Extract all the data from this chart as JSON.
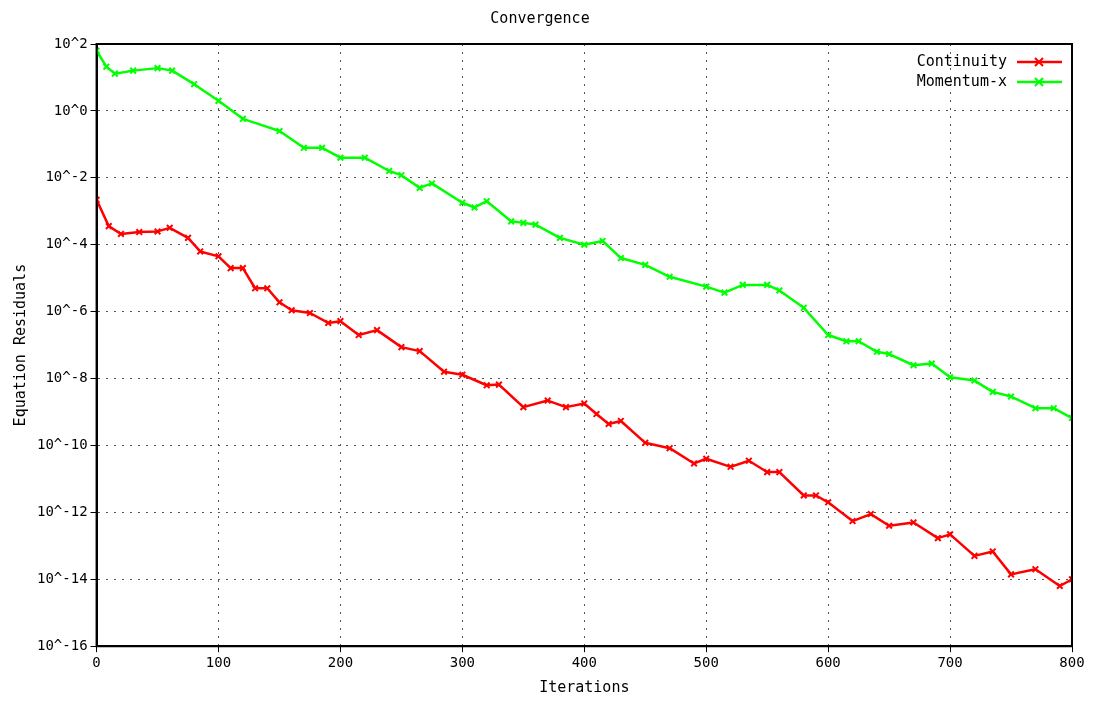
{
  "chart_data": {
    "type": "line",
    "title": "Convergence",
    "xlabel": "Iterations",
    "ylabel": "Equation Residuals",
    "log": "y",
    "grid": true,
    "legend": "top right",
    "marker": "cross",
    "line_style": "solid",
    "xlim": [
      0,
      800
    ],
    "xticks": [
      0,
      100,
      200,
      300,
      400,
      500,
      600,
      700,
      800
    ],
    "ylim": [
      1e-16,
      100
    ],
    "yticks": [
      {
        "value": 100,
        "label": "10^2"
      },
      {
        "value": 1,
        "label": "10^0"
      },
      {
        "value": 0.01,
        "label": "10^-2"
      },
      {
        "value": 0.0001,
        "label": "10^-4"
      },
      {
        "value": 1e-06,
        "label": "10^-6"
      },
      {
        "value": 1e-08,
        "label": "10^-8"
      },
      {
        "value": 1e-10,
        "label": "10^-10"
      },
      {
        "value": 1e-12,
        "label": "10^-12"
      },
      {
        "value": 1e-14,
        "label": "10^-14"
      },
      {
        "value": 1e-16,
        "label": "10^-16"
      }
    ],
    "series": [
      {
        "name": "Continuity",
        "color": "#ff0000",
        "x": [
          0,
          10,
          20,
          35,
          50,
          60,
          75,
          85,
          100,
          110,
          120,
          130,
          140,
          150,
          160,
          175,
          190,
          200,
          215,
          230,
          250,
          265,
          285,
          300,
          320,
          330,
          350,
          370,
          385,
          400,
          410,
          420,
          430,
          450,
          470,
          490,
          500,
          520,
          535,
          550,
          560,
          580,
          590,
          600,
          620,
          635,
          650,
          670,
          690,
          700,
          720,
          735,
          750,
          770,
          790,
          800
        ],
        "values": [
          0.0022,
          0.00036,
          0.00021,
          0.00024,
          0.00025,
          0.00032,
          0.00016,
          6.3e-05,
          4.5e-05,
          2e-05,
          2e-05,
          5e-06,
          5e-06,
          1.9e-06,
          1.1e-06,
          9.1e-07,
          4.6e-07,
          5.2e-07,
          2e-07,
          2.8e-07,
          8.7e-08,
          6.6e-08,
          1.6e-08,
          1.3e-08,
          6.3e-09,
          6.6e-09,
          1.4e-09,
          2.2e-09,
          1.4e-09,
          1.8e-09,
          8.7e-10,
          4.4e-10,
          5.4e-10,
          1.2e-10,
          8.3e-11,
          2.9e-11,
          4e-11,
          2.3e-11,
          3.5e-11,
          1.6e-11,
          1.6e-11,
          3.2e-12,
          3.2e-12,
          2e-12,
          5.5e-13,
          8.9e-13,
          4e-13,
          5e-13,
          1.7e-13,
          2.2e-13,
          5e-14,
          6.8e-14,
          1.4e-14,
          2e-14,
          6.3e-15,
          1e-14
        ]
      },
      {
        "name": "Momentum-x",
        "color": "#00ff00",
        "x": [
          0,
          8,
          15,
          30,
          50,
          62,
          80,
          100,
          120,
          150,
          170,
          185,
          200,
          220,
          240,
          250,
          265,
          275,
          300,
          310,
          320,
          340,
          350,
          360,
          380,
          400,
          415,
          430,
          450,
          470,
          500,
          515,
          530,
          550,
          560,
          580,
          600,
          615,
          625,
          640,
          650,
          670,
          685,
          700,
          720,
          735,
          750,
          770,
          785,
          800
        ],
        "values": [
          63,
          21,
          13,
          16,
          19,
          16,
          6.3,
          2.0,
          0.58,
          0.25,
          0.079,
          0.079,
          0.04,
          0.04,
          0.016,
          0.012,
          0.005,
          0.0068,
          0.0018,
          0.0013,
          0.002,
          0.0005,
          0.00045,
          0.0004,
          0.00016,
          0.0001,
          0.00013,
          4e-05,
          2.5e-05,
          1.1e-05,
          5.6e-06,
          3.7e-06,
          6.3e-06,
          6.3e-06,
          4.3e-06,
          1.3e-06,
          2e-07,
          1.3e-07,
          1.3e-07,
          6.3e-08,
          5.4e-08,
          2.5e-08,
          2.8e-08,
          1.1e-08,
          8.7e-09,
          4e-09,
          2.9e-09,
          1.3e-09,
          1.3e-09,
          6.6e-10
        ]
      }
    ]
  }
}
